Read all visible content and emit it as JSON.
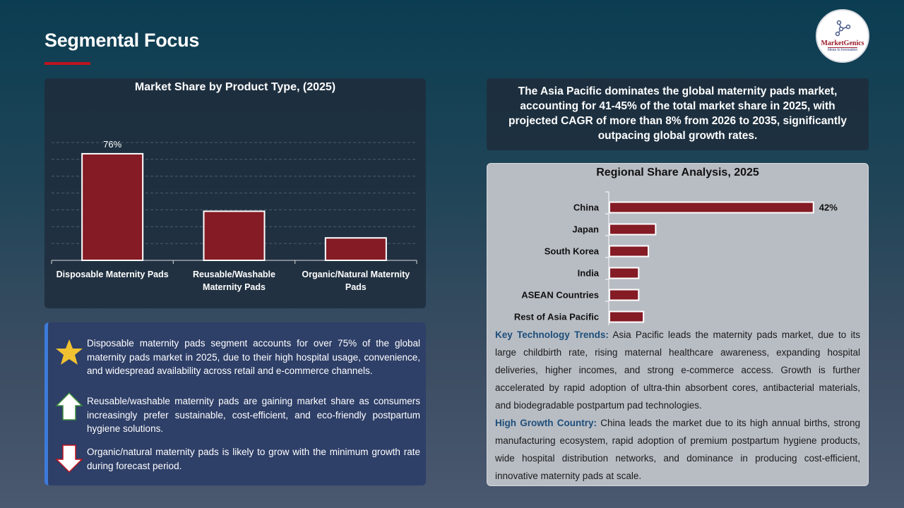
{
  "header": {
    "title": "Segmental Focus",
    "logo_name": "MarketGenics",
    "logo_tagline": "Ideas to Innovation"
  },
  "chart_data": [
    {
      "type": "bar",
      "title": "Market Share by Product Type, (2025)",
      "categories": [
        "Disposable Maternity Pads",
        "Reusable/Washable Maternity Pads",
        "Organic/Natural Maternity Pads"
      ],
      "values": [
        76,
        35,
        16
      ],
      "data_labels": [
        "76%",
        "",
        ""
      ],
      "ylim": [
        0,
        84
      ],
      "grid": true,
      "bar_color": "#841b25",
      "xlabel": "",
      "ylabel": ""
    },
    {
      "type": "bar",
      "orientation": "horizontal",
      "title": "Regional Share Analysis, 2025",
      "categories": [
        "China",
        "Japan",
        "South Korea",
        "India",
        "ASEAN Countries",
        "Rest of Asia Pacific"
      ],
      "values": [
        42,
        9.5,
        8,
        6,
        6,
        7
      ],
      "data_labels": [
        "42%",
        "",
        "",
        "",
        "",
        ""
      ],
      "xlim": [
        0,
        48
      ],
      "grid": false,
      "bar_color": "#841b25"
    }
  ],
  "bullets": [
    {
      "icon": "star-icon",
      "text": "Disposable maternity pads segment accounts for over 75% of the global maternity pads market in 2025, due to their high hospital usage, convenience, and widespread availability across retail and e-commerce channels."
    },
    {
      "icon": "arrow-up-icon",
      "text": "Reusable/washable maternity pads are gaining market share as consumers increasingly prefer sustainable, cost-efficient, and eco-friendly postpartum hygiene solutions."
    },
    {
      "icon": "arrow-down-icon",
      "text": "Organic/natural maternity pads is likely to grow with the minimum growth rate during forecast period."
    }
  ],
  "highlight": "The Asia Pacific dominates the global maternity pads market, accounting for 41-45% of the total market share in 2025, with projected CAGR of more than 8% from 2026 to 2035, significantly outpacing global growth rates.",
  "trends": {
    "label": "Key Technology Trends:",
    "text": " Asia Pacific leads the maternity pads market, due to its large childbirth rate, rising maternal healthcare awareness, expanding hospital deliveries, higher incomes, and strong e-commerce access. Growth is further accelerated by rapid adoption of ultra-thin absorbent cores, antibacterial materials, and biodegradable postpartum pad technologies."
  },
  "growth": {
    "label": "High Growth Country:",
    "text": " China leads the market due to its high annual births, strong manufacturing ecosystem, rapid adoption of premium postpartum hygiene products, wide hospital distribution networks, and dominance in producing cost-efficient, innovative maternity pads at scale."
  }
}
